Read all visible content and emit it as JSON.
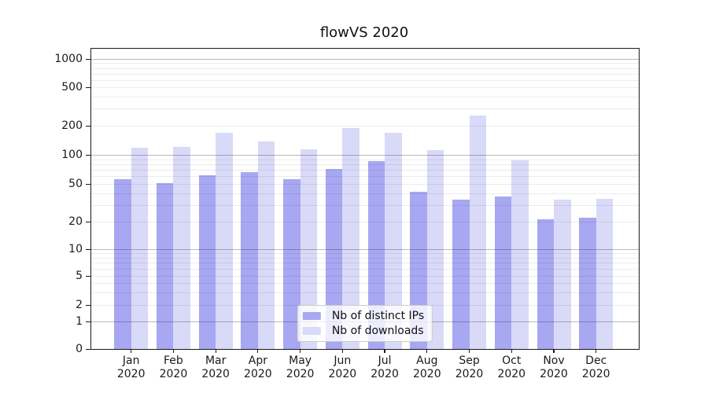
{
  "chart_data": {
    "type": "bar",
    "title": "flowVS 2020",
    "categories": [
      "Jan 2020",
      "Feb 2020",
      "Mar 2020",
      "Apr 2020",
      "May 2020",
      "Jun 2020",
      "Jul 2020",
      "Aug 2020",
      "Sep 2020",
      "Oct 2020",
      "Nov 2020",
      "Dec 2020"
    ],
    "series": [
      {
        "name": "Nb of distinct IPs",
        "color": "#a7a7f2",
        "values": [
          56,
          51,
          61,
          66,
          56,
          72,
          86,
          41,
          34,
          37,
          21,
          22
        ]
      },
      {
        "name": "Nb of downloads",
        "color": "#d9d9f8",
        "values": [
          119,
          121,
          170,
          138,
          114,
          188,
          170,
          112,
          255,
          88,
          34,
          35
        ]
      }
    ],
    "xlabel": "",
    "ylabel": "",
    "yscale": "symlog",
    "yticks": [
      0,
      1,
      2,
      5,
      10,
      20,
      50,
      100,
      200,
      500,
      1000
    ],
    "ylim": [
      0,
      1400
    ],
    "grid": "horizontal major and minor gridlines, drawn over bars",
    "legend_position": "lower center inside plot",
    "colors": {
      "grid_major": "#b0b0b0",
      "grid_minor": "#ececec",
      "spine": "#1a1a1a",
      "background": "#ffffff",
      "text": "#1a1a1a"
    }
  }
}
